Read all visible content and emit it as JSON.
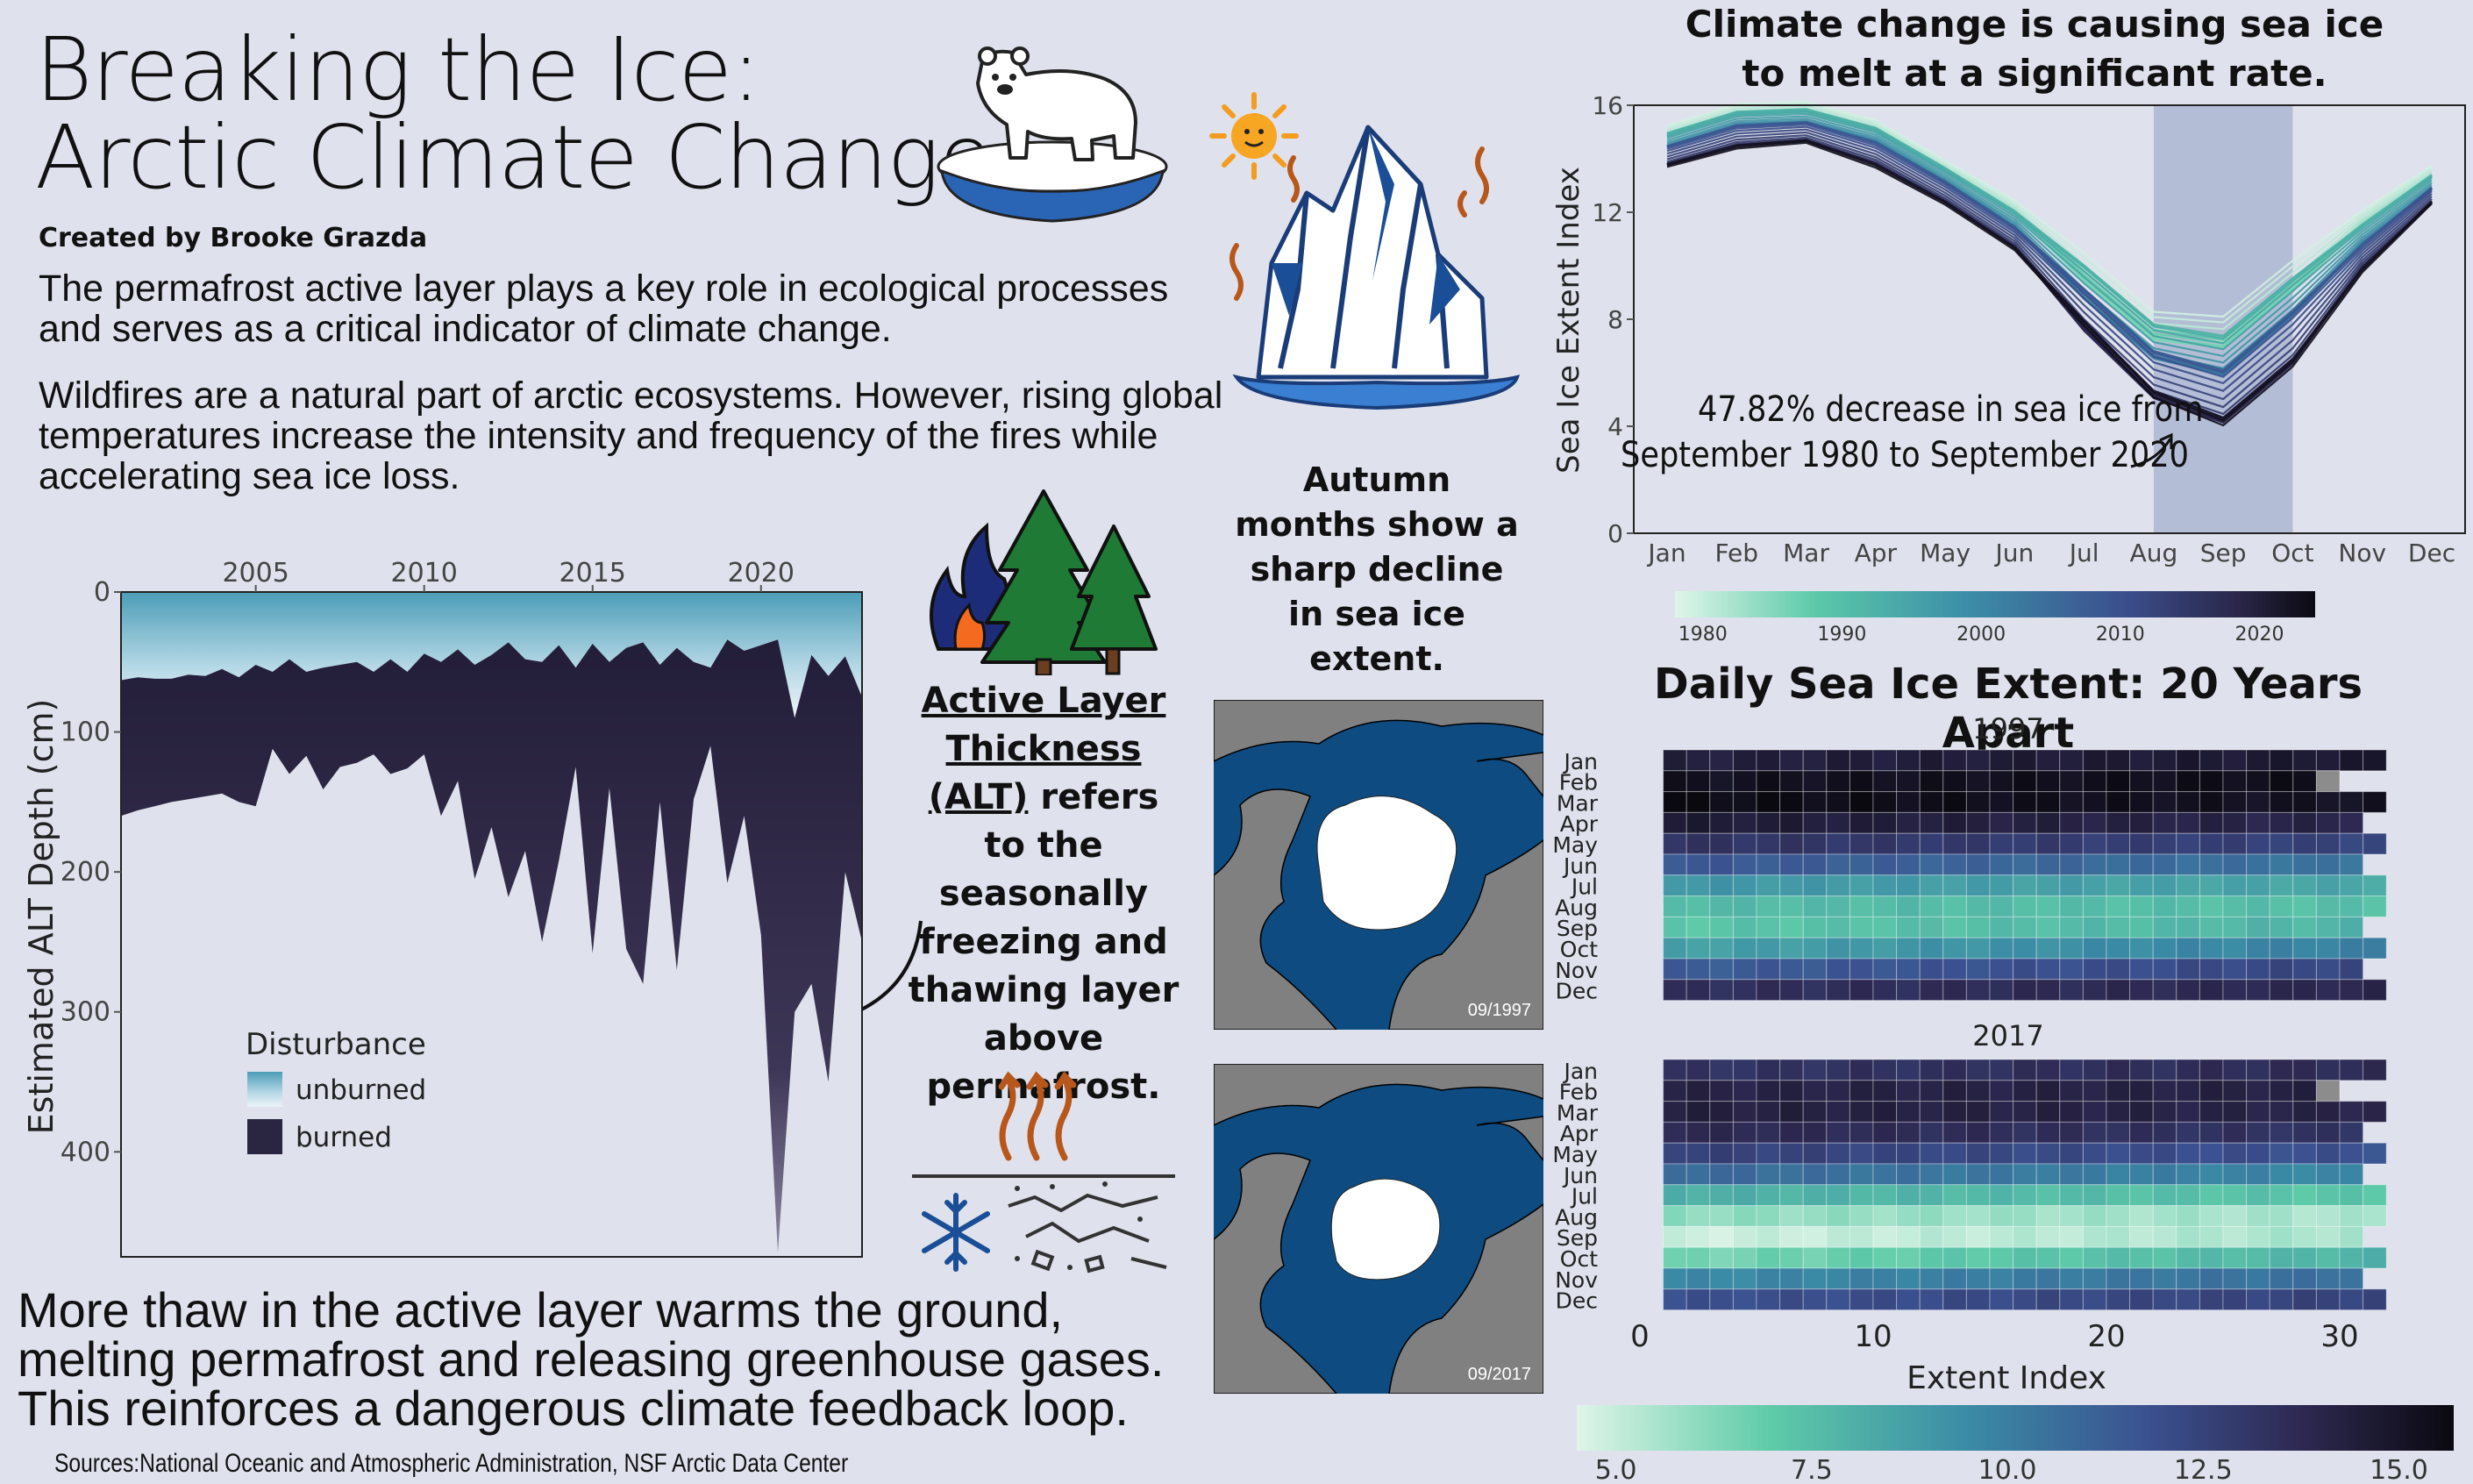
{
  "header": {
    "title_line1": "Breaking the Ice:",
    "title_line2": "Arctic Climate Change",
    "byline": "Created by Brooke Grazda"
  },
  "intro": {
    "p1": "The permafrost active layer plays a key role in ecological processes and serves as a critical indicator of climate change.",
    "p2": "Wildfires are a natural part of arctic ecosystems. However, rising global temperatures increase the intensity and frequency of the fires while accelerating sea ice loss."
  },
  "alt_definition": {
    "term": "Active Layer Thickness (ALT)",
    "rest": "refers to the seasonally freezing and thawing layer above permafrost."
  },
  "autumn_note": "Autumn months show a sharp decline in sea ice extent.",
  "footer": {
    "conclusion": "More thaw in the active layer warms the ground, melting permafrost and releasing greenhouse gases. This reinforces a dangerous climate feedback loop.",
    "sources": "Sources:National Oceanic and Atmospheric Administration, NSF Arctic Data Center"
  },
  "maps": [
    {
      "label": "09/1997"
    },
    {
      "label": "09/2017"
    }
  ],
  "colors": {
    "background": "#dfe2ec",
    "unburned_top": "#4c9db8",
    "burned": "#2a2540",
    "ocean": "#0e4b80",
    "land": "#808080",
    "highlight_band": "#b4bdd6"
  },
  "icons": [
    "polar-bear-icon",
    "sun-icon",
    "melting-iceberg-icon",
    "wildfire-icon",
    "pine-trees-icon",
    "heat-arrows-icon",
    "snowflake-icon",
    "soil-layer-icon"
  ],
  "chart_data": [
    {
      "type": "area",
      "id": "alt",
      "title": "",
      "xlabel": "",
      "ylabel": "Estimated ALT Depth (cm)",
      "xlim": [
        2001,
        2023
      ],
      "ylim": [
        0,
        475
      ],
      "x_ticks": [
        2005,
        2010,
        2015,
        2020
      ],
      "y_ticks": [
        0,
        100,
        200,
        300,
        400
      ],
      "legend_title": "Disturbance",
      "legend_placement": "bottom-left",
      "series": [
        {
          "name": "unburned",
          "x": [
            2001,
            2001.5,
            2002,
            2002.5,
            2003,
            2003.5,
            2004,
            2004.5,
            2005,
            2005.5,
            2006,
            2006.5,
            2007,
            2007.5,
            2008,
            2008.5,
            2009,
            2009.5,
            2010,
            2010.5,
            2011,
            2011.5,
            2012,
            2012.5,
            2013,
            2013.5,
            2014,
            2014.5,
            2015,
            2015.5,
            2016,
            2016.5,
            2017,
            2017.5,
            2018,
            2018.5,
            2019,
            2019.5,
            2020,
            2020.5,
            2021,
            2021.5,
            2022,
            2022.5,
            2023
          ],
          "values": [
            63,
            61,
            62,
            62,
            59,
            60,
            55,
            61,
            52,
            57,
            48,
            57,
            54,
            52,
            50,
            57,
            48,
            57,
            44,
            50,
            41,
            52,
            45,
            36,
            48,
            50,
            38,
            54,
            37,
            50,
            40,
            36,
            52,
            40,
            50,
            54,
            34,
            42,
            38,
            34,
            90,
            45,
            60,
            46,
            75
          ]
        },
        {
          "name": "burned",
          "x": [
            2001,
            2001.5,
            2002,
            2002.5,
            2003,
            2003.5,
            2004,
            2004.5,
            2005,
            2005.5,
            2006,
            2006.5,
            2007,
            2007.5,
            2008,
            2008.5,
            2009,
            2009.5,
            2010,
            2010.5,
            2011,
            2011.5,
            2012,
            2012.5,
            2013,
            2013.5,
            2014,
            2014.5,
            2015,
            2015.5,
            2016,
            2016.5,
            2017,
            2017.5,
            2018,
            2018.5,
            2019,
            2019.5,
            2020,
            2020.5,
            2021,
            2021.5,
            2022,
            2022.5,
            2023
          ],
          "values": [
            160,
            156,
            153,
            150,
            148,
            146,
            144,
            150,
            153,
            112,
            130,
            117,
            141,
            125,
            122,
            116,
            130,
            126,
            116,
            160,
            135,
            205,
            168,
            218,
            185,
            250,
            192,
            125,
            258,
            140,
            255,
            280,
            150,
            270,
            148,
            110,
            208,
            160,
            245,
            472,
            300,
            280,
            350,
            200,
            250
          ]
        }
      ]
    },
    {
      "type": "line",
      "id": "seaice-monthly",
      "title": "Climate change is causing sea ice to melt at a significant rate.",
      "xlabel": "",
      "ylabel": "Sea Ice Extent Index",
      "categories": [
        "Jan",
        "Feb",
        "Mar",
        "Apr",
        "May",
        "Jun",
        "Jul",
        "Aug",
        "Sep",
        "Oct",
        "Nov",
        "Dec"
      ],
      "ylim": [
        0,
        16
      ],
      "y_ticks": [
        0,
        4,
        8,
        12,
        16
      ],
      "highlight": [
        "Aug",
        "Oct"
      ],
      "color_scale": {
        "label_values": [
          1980,
          1990,
          2000,
          2010,
          2020
        ],
        "range": [
          1978,
          2024
        ]
      },
      "series": [
        {
          "name": "1980",
          "values": [
            15.1,
            15.9,
            16.0,
            15.3,
            13.8,
            12.3,
            10.1,
            7.9,
            7.7,
            9.8,
            11.9,
            13.6
          ]
        },
        {
          "name": "2000",
          "values": [
            14.6,
            15.4,
            15.5,
            14.8,
            13.3,
            11.6,
            9.2,
            7.0,
            6.4,
            8.6,
            11.0,
            13.0
          ]
        },
        {
          "name": "2020",
          "values": [
            13.7,
            14.4,
            14.6,
            13.7,
            12.3,
            10.6,
            7.6,
            5.0,
            4.0,
            6.2,
            9.8,
            12.3
          ]
        }
      ],
      "annotation": "47.82% decrease in sea ice from September 1980 to September 2020"
    },
    {
      "type": "heatmap",
      "id": "heat-1997",
      "title": "Daily Sea Ice Extent: 20 Years Apart",
      "subtitle": "1997",
      "xlabel": "Extent Index",
      "x_ticks": [
        0,
        10,
        20,
        30
      ],
      "rows": [
        "Jan",
        "Feb",
        "Mar",
        "Apr",
        "May",
        "Jun",
        "Jul",
        "Aug",
        "Sep",
        "Oct",
        "Nov",
        "Dec"
      ],
      "values": [
        14.3,
        15.2,
        15.6,
        14.6,
        13.3,
        11.6,
        9.1,
        7.7,
        7.2,
        8.6,
        11.3,
        13.4
      ],
      "days_in_month": [
        31,
        28,
        31,
        30,
        31,
        30,
        31,
        31,
        30,
        31,
        30,
        31
      ],
      "color_scale": {
        "range": [
          4.5,
          15.7
        ],
        "label_values": [
          5.0,
          7.5,
          10.0,
          12.5,
          15.0
        ]
      }
    },
    {
      "type": "heatmap",
      "id": "heat-2017",
      "subtitle": "2017",
      "rows": [
        "Jan",
        "Feb",
        "Mar",
        "Apr",
        "May",
        "Jun",
        "Jul",
        "Aug",
        "Sep",
        "Oct",
        "Nov",
        "Dec"
      ],
      "values": [
        13.2,
        14.1,
        14.3,
        13.8,
        12.6,
        10.9,
        8.2,
        6.1,
        4.8,
        6.4,
        9.5,
        11.8
      ],
      "days_in_month": [
        31,
        28,
        31,
        30,
        31,
        30,
        31,
        31,
        30,
        31,
        30,
        31
      ]
    }
  ]
}
